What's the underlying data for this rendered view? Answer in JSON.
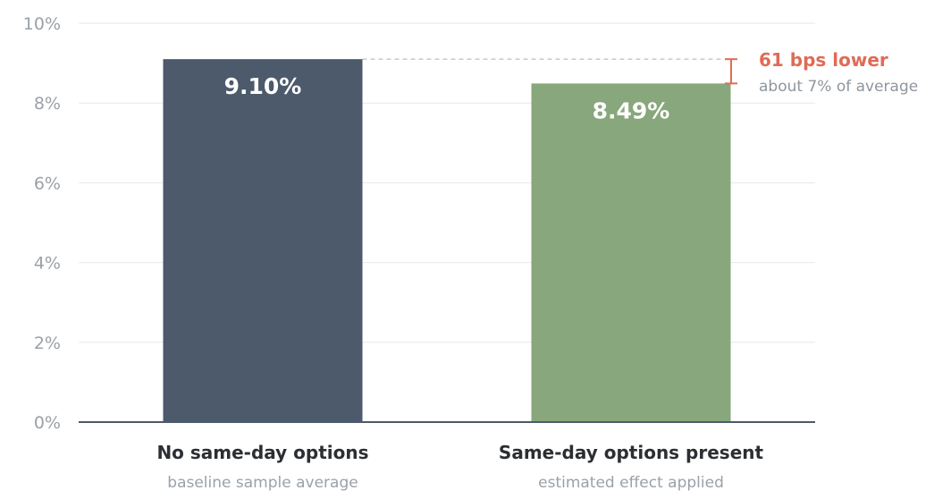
{
  "chart_data": {
    "type": "bar",
    "categories": [
      "No same-day options",
      "Same-day options present"
    ],
    "category_subtitles": [
      "baseline sample average",
      "estimated effect applied"
    ],
    "values": [
      9.1,
      8.49
    ],
    "value_labels": [
      "9.10%",
      "8.49%"
    ],
    "bar_colors": [
      "#4c5a6b",
      "#88a77c"
    ],
    "ylim": [
      0,
      10
    ],
    "yticks": [
      {
        "value": 0,
        "label": "0%"
      },
      {
        "value": 2,
        "label": "2%"
      },
      {
        "value": 4,
        "label": "4%"
      },
      {
        "value": 6,
        "label": "6%"
      },
      {
        "value": 8,
        "label": "8%"
      },
      {
        "value": 10,
        "label": "10%"
      }
    ],
    "grid": true,
    "annotation": {
      "text": "61 bps lower",
      "subtext": "about 7% of average",
      "from_value": 9.1,
      "to_value": 8.49,
      "color": "#e06b55"
    }
  }
}
